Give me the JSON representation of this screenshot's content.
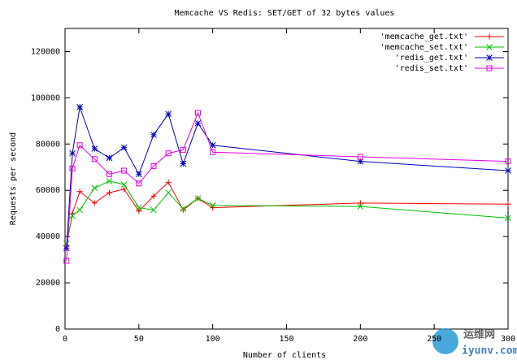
{
  "chart_data": {
    "type": "line",
    "title": "Memcache VS Redis: SET/GET of 32 bytes values",
    "x_label": "Number of clients",
    "y_label": "Requests per second",
    "x": [
      1,
      5,
      10,
      20,
      30,
      40,
      50,
      60,
      70,
      80,
      90,
      100,
      200,
      300
    ],
    "series": [
      {
        "name": "'memcache_get.txt'",
        "color": "#ff0000",
        "marker": "plus",
        "values": [
          36000,
          50000,
          59500,
          54500,
          59000,
          60500,
          51000,
          57500,
          63500,
          51500,
          56500,
          52500,
          54500,
          54000
        ]
      },
      {
        "name": "'memcache_set.txt'",
        "color": "#00c000",
        "marker": "cross",
        "values": [
          37000,
          49000,
          51500,
          61000,
          64000,
          62500,
          52500,
          51500,
          59000,
          52000,
          56500,
          53500,
          53000,
          48000
        ]
      },
      {
        "name": "'redis_get.txt'",
        "color": "#0000c0",
        "marker": "star",
        "values": [
          35000,
          76000,
          96000,
          78000,
          74000,
          78500,
          67000,
          84000,
          93000,
          71500,
          89000,
          79500,
          72500,
          68500
        ]
      },
      {
        "name": "'redis_set.txt'",
        "color": "#e000e0",
        "marker": "square",
        "values": [
          29500,
          69500,
          79500,
          73500,
          67000,
          68500,
          63000,
          70500,
          76000,
          77500,
          93500,
          76500,
          74500,
          72500
        ]
      }
    ],
    "xlim": [
      0,
      300
    ],
    "xticks": [
      0,
      50,
      100,
      150,
      200,
      250,
      300
    ],
    "ylim": [
      0,
      130000
    ],
    "yticks": [
      0,
      20000,
      40000,
      60000,
      80000,
      100000,
      120000
    ],
    "legend": "top-right"
  },
  "watermark": {
    "name": "运维网",
    "url": "iyunv.com"
  }
}
